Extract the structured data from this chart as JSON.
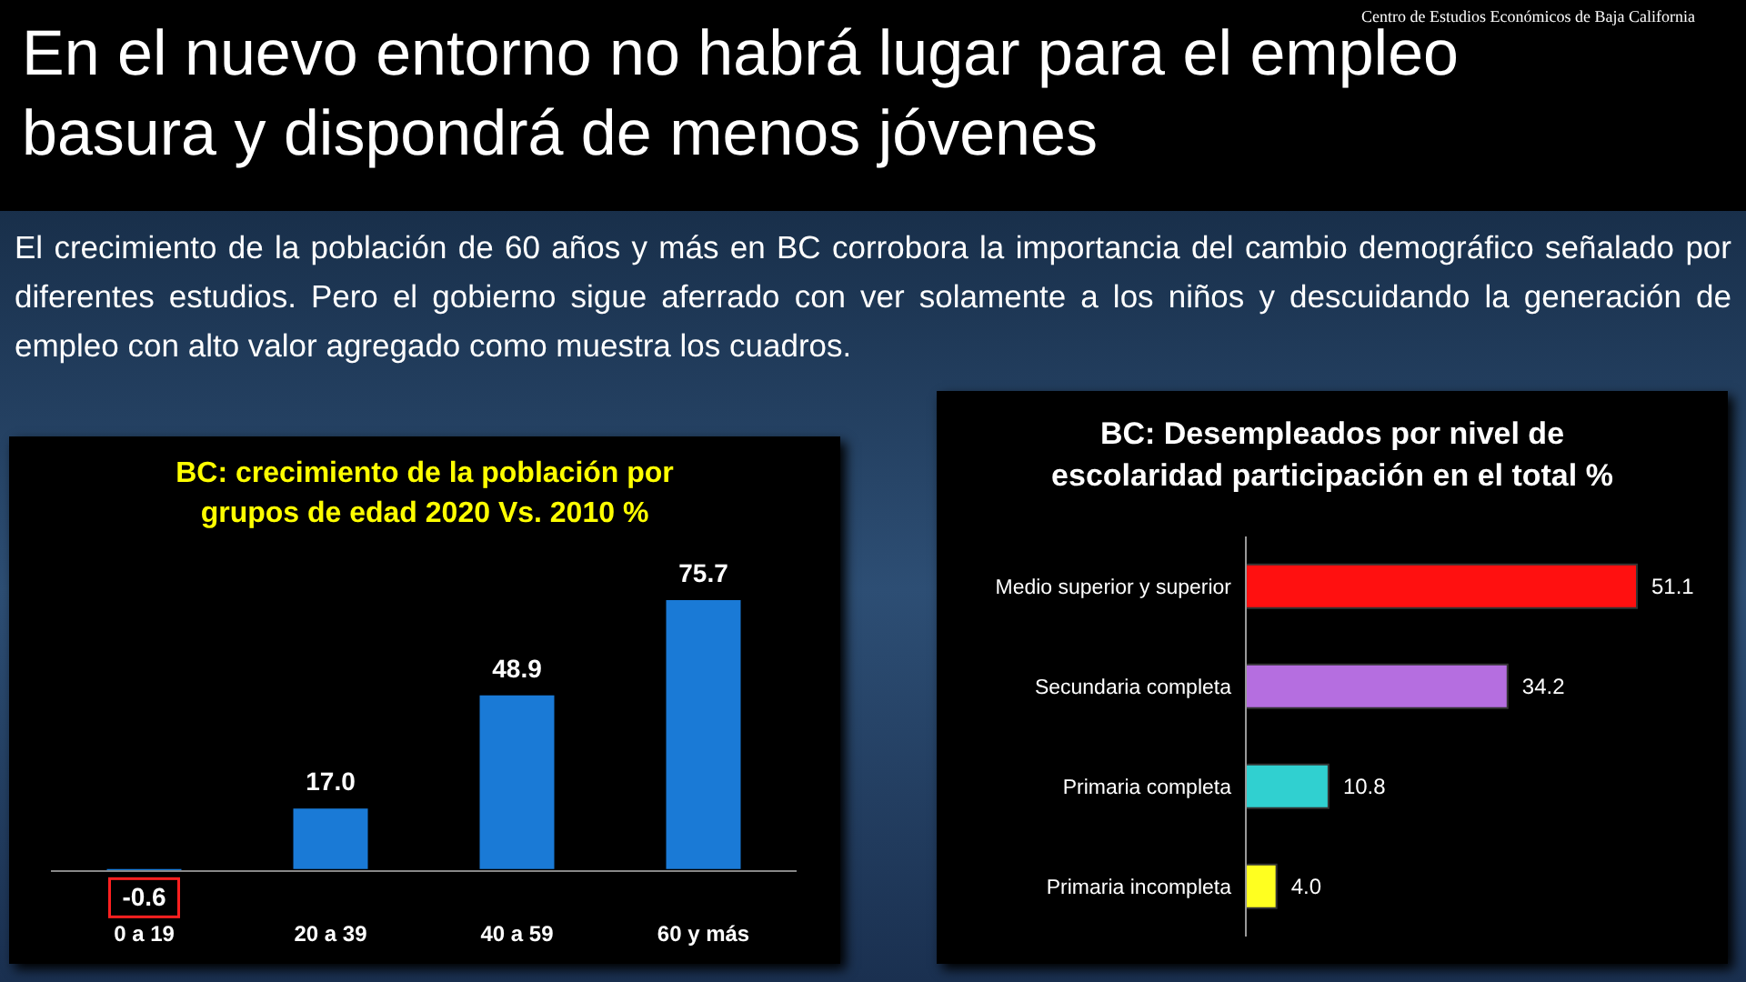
{
  "chart_data": [
    {
      "type": "bar",
      "title": "BC: crecimiento de la población por grupos de edad 2020 Vs. 2010 %",
      "categories": [
        "0 a 19",
        "20 a 39",
        "40 a 59",
        "60 y más"
      ],
      "values": [
        -0.6,
        17.0,
        48.9,
        75.7
      ],
      "value_labels": [
        "-0.6",
        "17.0",
        "48.9",
        "75.7"
      ],
      "color": "#1a7ad6",
      "annotations": [
        "En el nuevo entorno no habrá lugar para el empleo basura y dispondrá de menos jóvenes",
        "El crecimiento de la población de 60 años y más en BC corrobora la importancia del cambio demográfico señalado por diferentes estudios. Pero el gobierno sigue aferrado con ver solamente a los niños y descuidando la generación de empleo con alto valor agregado como muestra los cuadros.",
        "Centro de Estudios Económicos de Baja California"
      ]
    },
    {
      "type": "bar",
      "orientation": "horizontal",
      "title": "BC: Desempleados por nivel de escolaridad participación en el total %",
      "categories": [
        "Medio superior y superior",
        "Secundaria completa",
        "Primaria completa",
        "Primaria incompleta"
      ],
      "values": [
        51.1,
        34.2,
        10.8,
        4.0
      ],
      "value_labels": [
        "51.1",
        "34.2",
        "10.8",
        "4.0"
      ],
      "colors": [
        "#ff1010",
        "#b56ee0",
        "#30d0d0",
        "#ffff20"
      ]
    }
  ]
}
